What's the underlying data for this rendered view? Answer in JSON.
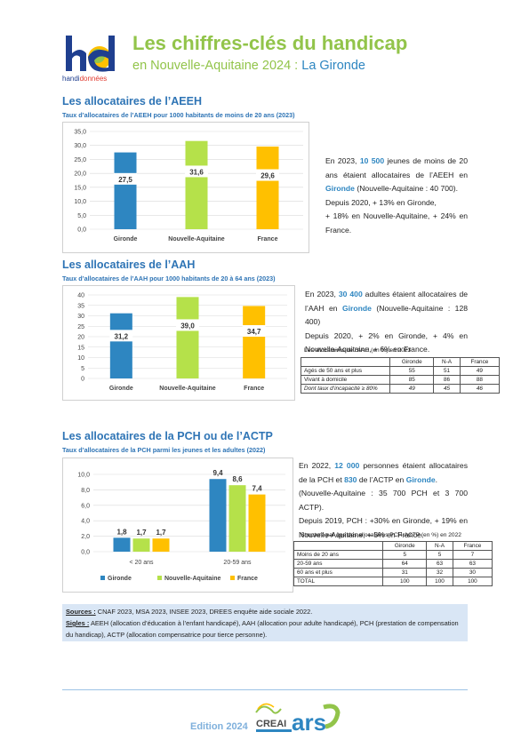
{
  "header": {
    "logo_text_a": "handi",
    "logo_text_b": "données",
    "title": "Les chiffres-clés du handicap",
    "subtitle_prefix": "en Nouvelle-Aquitaine 2024 : ",
    "subtitle_dept": "La Gironde"
  },
  "aeeh": {
    "heading": "Les allocataires de l’AEEH",
    "subheading": "Taux d’allocataires de l’AEEH pour 1000 habitants de moins de 20 ans (2023)",
    "para": {
      "p1a": "En 2023, ",
      "num1": "10 500",
      "p1b": " jeunes de moins de 20 ans étaient allocataires de l’AEEH en ",
      "dept": "Gironde",
      "p1c": " (Nouvelle-Aquitaine : 40 700).",
      "p2": "Depuis 2020, + 13% en Gironde,",
      "p3": "+ 18% en Nouvelle-Aquitaine, + 24% en France."
    }
  },
  "aah": {
    "heading": "Les allocataires de l’AAH",
    "subheading": "Taux d’allocataires de l’AAH pour 1000 habitants de 20 à 64 ans (2023)",
    "para": {
      "p1a": "En 2023, ",
      "num1": "30 400",
      "p1b": " adultes étaient allocataires de l’AAH en ",
      "dept": "Gironde",
      "p1c": " (Nouvelle-Aquitaine : 128 400)",
      "p2": "Depuis 2020, + 2% en Gironde, + 4% en Nouvelle-Aquitaine, + 6% en France."
    },
    "table": {
      "caption": "Les allocataires de l’AAH (en %) en 2023",
      "headers": [
        "",
        "Gironde",
        "N-A",
        "France"
      ],
      "rows": [
        [
          "Agés de 50 ans et plus",
          "55",
          "51",
          "49"
        ],
        [
          "Vivant à domicile",
          "85",
          "86",
          "88"
        ],
        [
          "Dont taux d’incapacité ≥ 80%",
          "49",
          "45",
          "46"
        ]
      ]
    }
  },
  "pch": {
    "heading": "Les allocataires de la PCH ou de l’ACTP",
    "subheading": "Taux d’allocataires de la PCH parmi les jeunes et les adultes (2022)",
    "para": {
      "p1a": "En 2022, ",
      "num1": "12 000",
      "p1b": " personnes étaient allocataires de la PCH et ",
      "num2": "830",
      "p1c": " de l’ACTP en ",
      "dept": "Gironde",
      "p1d": ".",
      "p2": "(Nouvelle-Aquitaine : 35 700 PCH et 3 700 ACTP).",
      "p3": "Depuis 2019, PCH : +30% en Gironde, + 19% en Nouvelle-Aquitaine, + 5% en France."
    },
    "table": {
      "caption": "Structure par âge des allocataires PCH-ACTP (en %) en 2022",
      "headers": [
        "",
        "Gironde",
        "N-A",
        "France"
      ],
      "rows": [
        [
          "Moins de 20 ans",
          "5",
          "5",
          "7"
        ],
        [
          "20-59 ans",
          "64",
          "63",
          "63"
        ],
        [
          "60 ans et plus",
          "31",
          "32",
          "30"
        ],
        [
          "TOTAL",
          "100",
          "100",
          "100"
        ]
      ]
    }
  },
  "sources": {
    "label": "Sources :",
    "text": " CNAF 2023, MSA 2023, INSEE 2023, DREES enquête aide sociale 2022.",
    "sigles_label": "Sigles :",
    "sigles_text": " AEEH (allocation d’éducation à l’enfant handicapé), AAH (allocation pour adulte handicapé), PCH (prestation de compensation du handicap), ACTP (allocation compensatrice pour tierce personne)."
  },
  "footer": {
    "edition": "Edition 2024",
    "creai": "CREAI",
    "ars": "ars"
  },
  "colors": {
    "gironde": "#2e86c1",
    "nouvelle_aquitaine": "#b5e14a",
    "france": "#ffc000",
    "title_green": "#92c44a",
    "heading_blue": "#2e74b5"
  },
  "chart_data": [
    {
      "type": "bar",
      "categories": [
        "Gironde",
        "Nouvelle-Aquitaine",
        "France"
      ],
      "values": [
        27.5,
        31.6,
        29.6
      ],
      "data_labels": [
        "27,5",
        "31,6",
        "29,6"
      ],
      "yticks": [
        "0,0",
        "5,0",
        "10,0",
        "15,0",
        "20,0",
        "25,0",
        "30,0",
        "35,0"
      ],
      "ylim": [
        0,
        35
      ],
      "grid": true
    },
    {
      "type": "bar",
      "categories": [
        "Gironde",
        "Nouvelle-Aquitaine",
        "France"
      ],
      "values": [
        31.2,
        39.0,
        34.7
      ],
      "data_labels": [
        "31,2",
        "39,0",
        "34,7"
      ],
      "yticks": [
        "0",
        "5",
        "10",
        "15",
        "20",
        "25",
        "30",
        "35",
        "40"
      ],
      "ylim": [
        0,
        40
      ],
      "grid": true
    },
    {
      "type": "bar",
      "categories": [
        "< 20 ans",
        "20-59 ans"
      ],
      "series": [
        {
          "name": "Gironde",
          "values": [
            1.8,
            9.4
          ],
          "labels": [
            "1,8",
            "9,4"
          ]
        },
        {
          "name": "Nouvelle-Aquitaine",
          "values": [
            1.7,
            8.6
          ],
          "labels": [
            "1,7",
            "8,6"
          ]
        },
        {
          "name": "France",
          "values": [
            1.7,
            7.4
          ],
          "labels": [
            "1,7",
            "7,4"
          ]
        }
      ],
      "yticks": [
        "0,0",
        "2,0",
        "4,0",
        "6,0",
        "8,0",
        "10,0"
      ],
      "ylim": [
        0,
        10
      ],
      "grid": true,
      "legend": "bottom"
    }
  ]
}
